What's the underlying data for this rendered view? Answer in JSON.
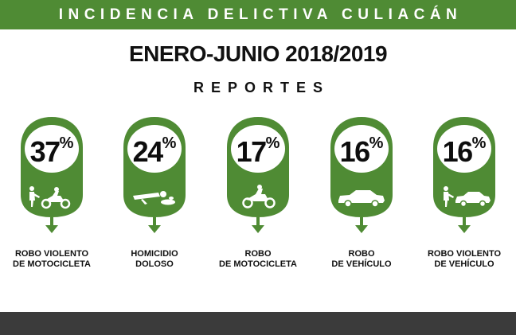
{
  "banner": {
    "title": "INCIDENCIA DELICTIVA CULIACÁN"
  },
  "headline": "ENERO-JUNIO 2018/2019",
  "subhead": "REPORTES",
  "colors": {
    "green": "#4f8b34",
    "dark": "#111111",
    "footer": "#3b3b3b"
  },
  "stats": [
    {
      "value": "37",
      "unit": "%",
      "label_line1": "ROBO VIOLENTO",
      "label_line2": "DE MOTOCICLETA",
      "icon": "person-motorcycle-icon"
    },
    {
      "value": "24",
      "unit": "%",
      "label_line1": "HOMICIDIO",
      "label_line2": "DOLOSO",
      "icon": "body-lying-icon"
    },
    {
      "value": "17",
      "unit": "%",
      "label_line1": "ROBO",
      "label_line2": "DE MOTOCICLETA",
      "icon": "motorcycle-icon"
    },
    {
      "value": "16",
      "unit": "%",
      "label_line1": "ROBO",
      "label_line2": "DE VEHÍCULO",
      "icon": "car-icon"
    },
    {
      "value": "16",
      "unit": "%",
      "label_line1": "ROBO VIOLENTO",
      "label_line2": "DE VEHÍCULO",
      "icon": "person-car-icon"
    }
  ]
}
